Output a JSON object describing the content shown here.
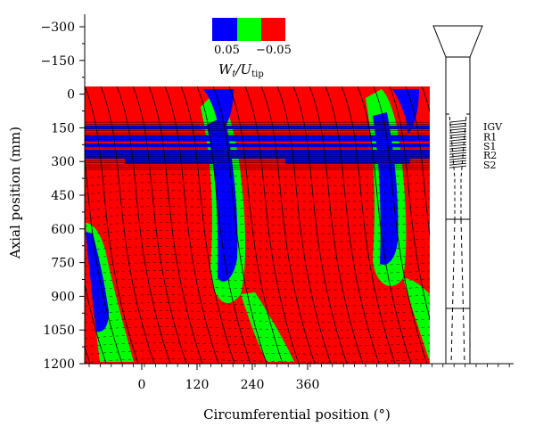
{
  "chart_data": {
    "type": "heatmap",
    "title": "",
    "xlabel": "Circumferential position (°)",
    "ylabel": "Axial position (mm)",
    "x_ticks": [
      "0",
      "120",
      "240",
      "360"
    ],
    "y_ticks": [
      -300,
      -150,
      0,
      150,
      300,
      450,
      600,
      750,
      900,
      1050,
      1200
    ],
    "y_tick_labels": [
      "−300",
      "−150",
      "0",
      "150",
      "300",
      "450",
      "600",
      "750",
      "900",
      "1050",
      "1200"
    ],
    "ylim": [
      -300,
      1200
    ],
    "y_inverted": true,
    "legend": {
      "quantity": "W",
      "quantity_sub": "t",
      "over": "/U",
      "over_sub": "tip",
      "bands": [
        {
          "color": "#0000ff"
        },
        {
          "color": "#00ff00"
        },
        {
          "color": "#ff0000"
        }
      ],
      "tick_labels": [
        "0.05",
        "−0.05"
      ]
    },
    "color_levels": {
      "blue": "#0000ff",
      "green": "#00ff00",
      "red": "#ff0000"
    },
    "contour_data_range_mm": [
      20,
      1200
    ],
    "rows": [
      {
        "label": "IGV",
        "axial_mm": 145
      },
      {
        "label": "R1",
        "axial_mm": 190
      },
      {
        "label": "S1",
        "axial_mm": 232
      },
      {
        "label": "R2",
        "axial_mm": 272
      },
      {
        "label": "S2",
        "axial_mm": 315
      }
    ],
    "grid": false
  }
}
